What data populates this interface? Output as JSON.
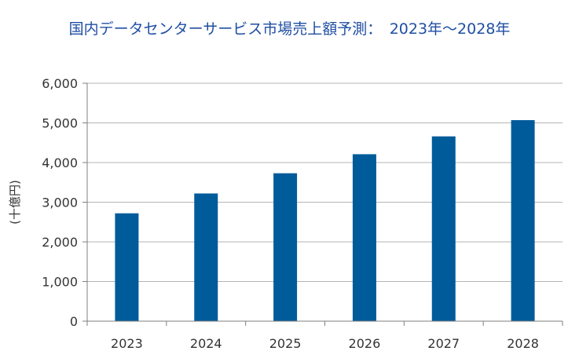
{
  "chart_data": {
    "type": "bar",
    "title": "国内データセンターサービス市場売上額予測：　2023年～2028年",
    "ylabel": "(十億円)",
    "xlabel": "",
    "categories": [
      "2023",
      "2024",
      "2025",
      "2026",
      "2027",
      "2028"
    ],
    "values": [
      2720,
      3220,
      3730,
      4210,
      4660,
      5070
    ],
    "ylim": [
      0,
      6000
    ],
    "yticks": [
      0,
      1000,
      2000,
      3000,
      4000,
      5000,
      6000
    ],
    "ytick_labels": [
      "0",
      "1,000",
      "2,000",
      "3,000",
      "4,000",
      "5,000",
      "6,000"
    ],
    "grid": true,
    "legend": "none",
    "colors": {
      "bar": "#005b9a",
      "title": "#1f4ea3",
      "grid": "#b5b5b5",
      "axis": "#7f7f7f"
    }
  }
}
